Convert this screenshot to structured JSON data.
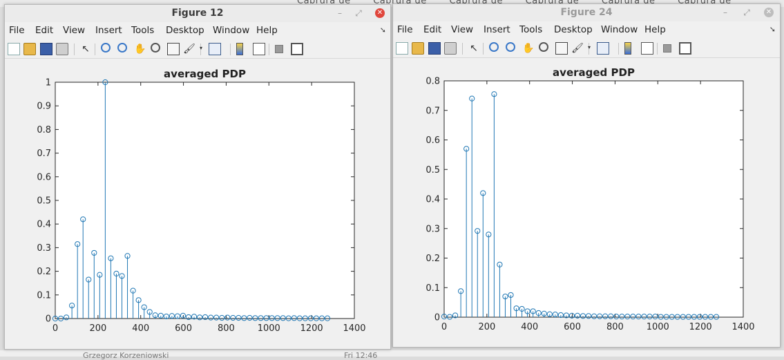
{
  "background": {
    "tabs": [
      "Cabrura de",
      "Cabrura de",
      "Cabrura de",
      "Cabrura de",
      "Cabrura de",
      "Cabrura de"
    ],
    "footer_left": "Grzegorz Korzeniowski",
    "footer_right": "Fri 12:46"
  },
  "colors": {
    "stem": "#1f77b4",
    "close_active": "#e0463c"
  },
  "windows": [
    {
      "title": "Figure 12",
      "active": true,
      "menu": [
        "File",
        "Edit",
        "View",
        "Insert",
        "Tools",
        "Desktop",
        "Window",
        "Help"
      ],
      "toolbar_icons": [
        "new-figure-icon",
        "open-file-icon",
        "save-icon",
        "print-icon",
        "select-arrow-icon",
        "zoom-in-icon",
        "zoom-out-icon",
        "pan-hand-icon",
        "rotate-3d-icon",
        "data-cursor-icon",
        "brush-icon",
        "link-plot-icon",
        "colorbar-icon",
        "legend-icon",
        "hide-plot-tools-icon",
        "show-plot-tools-icon"
      ],
      "chart_data": {
        "type": "stem",
        "title": "averaged PDP",
        "xlim": [
          0,
          1400
        ],
        "ylim": [
          0,
          1
        ],
        "xticks": [
          0,
          200,
          400,
          600,
          800,
          1000,
          1200,
          1400
        ],
        "yticks": [
          0,
          0.1,
          0.2,
          0.3,
          0.4,
          0.5,
          0.6,
          0.7,
          0.8,
          0.9,
          1
        ],
        "ytick_labels": [
          "0",
          "0.1",
          "0.2",
          "0.3",
          "0.4",
          "0.5",
          "0.6",
          "0.7",
          "0.8",
          "0.9",
          "1"
        ],
        "grid": false,
        "x": [
          0,
          26,
          52,
          78,
          104,
          130,
          156,
          182,
          208,
          234,
          260,
          286,
          312,
          338,
          364,
          390,
          416,
          442,
          468,
          494,
          520,
          546,
          572,
          598,
          624,
          650,
          676,
          702,
          728,
          754,
          780,
          806,
          832,
          858,
          884,
          910,
          936,
          962,
          988,
          1014,
          1040,
          1066,
          1092,
          1118,
          1144,
          1170,
          1196,
          1222,
          1248,
          1274
        ],
        "y": [
          0,
          0,
          0.005,
          0.055,
          0.315,
          0.42,
          0.165,
          0.278,
          0.185,
          1.0,
          0.255,
          0.19,
          0.18,
          0.265,
          0.118,
          0.078,
          0.048,
          0.028,
          0.014,
          0.012,
          0.009,
          0.011,
          0.01,
          0.012,
          0.006,
          0.008,
          0.005,
          0.006,
          0.004,
          0.004,
          0.003,
          0.004,
          0.003,
          0.003,
          0.002,
          0.003,
          0.002,
          0.002,
          0.002,
          0.002,
          0.002,
          0.002,
          0.001,
          0.002,
          0.001,
          0.001,
          0.001,
          0.001,
          0.001,
          0.001
        ]
      }
    },
    {
      "title": "Figure 24",
      "active": false,
      "menu": [
        "File",
        "Edit",
        "View",
        "Insert",
        "Tools",
        "Desktop",
        "Window",
        "Help"
      ],
      "toolbar_icons": [
        "new-figure-icon",
        "open-file-icon",
        "save-icon",
        "print-icon",
        "select-arrow-icon",
        "zoom-in-icon",
        "zoom-out-icon",
        "pan-hand-icon",
        "rotate-3d-icon",
        "data-cursor-icon",
        "brush-icon",
        "link-plot-icon",
        "colorbar-icon",
        "legend-icon",
        "hide-plot-tools-icon",
        "show-plot-tools-icon"
      ],
      "chart_data": {
        "type": "stem",
        "title": "averaged PDP",
        "xlim": [
          0,
          1400
        ],
        "ylim": [
          0,
          0.8
        ],
        "xticks": [
          0,
          200,
          400,
          600,
          800,
          1000,
          1200,
          1400
        ],
        "yticks": [
          0,
          0.1,
          0.2,
          0.3,
          0.4,
          0.5,
          0.6,
          0.7,
          0.8
        ],
        "ytick_labels": [
          "0",
          "0.1",
          "0.2",
          "0.3",
          "0.4",
          "0.5",
          "0.6",
          "0.7",
          "0.8"
        ],
        "grid": false,
        "x": [
          0,
          26,
          52,
          78,
          104,
          130,
          156,
          182,
          208,
          234,
          260,
          286,
          312,
          338,
          364,
          390,
          416,
          442,
          468,
          494,
          520,
          546,
          572,
          598,
          624,
          650,
          676,
          702,
          728,
          754,
          780,
          806,
          832,
          858,
          884,
          910,
          936,
          962,
          988,
          1014,
          1040,
          1066,
          1092,
          1118,
          1144,
          1170,
          1196,
          1222,
          1248,
          1274
        ],
        "y": [
          0.002,
          0.001,
          0.006,
          0.088,
          0.57,
          0.74,
          0.292,
          0.42,
          0.28,
          0.755,
          0.178,
          0.07,
          0.075,
          0.03,
          0.028,
          0.02,
          0.02,
          0.014,
          0.012,
          0.01,
          0.009,
          0.007,
          0.006,
          0.005,
          0.005,
          0.004,
          0.004,
          0.003,
          0.003,
          0.003,
          0.003,
          0.002,
          0.002,
          0.002,
          0.002,
          0.002,
          0.002,
          0.002,
          0.002,
          0.001,
          0.001,
          0.001,
          0.001,
          0.001,
          0.001,
          0.001,
          0.001,
          0.001,
          0.001,
          0.001
        ]
      }
    }
  ]
}
